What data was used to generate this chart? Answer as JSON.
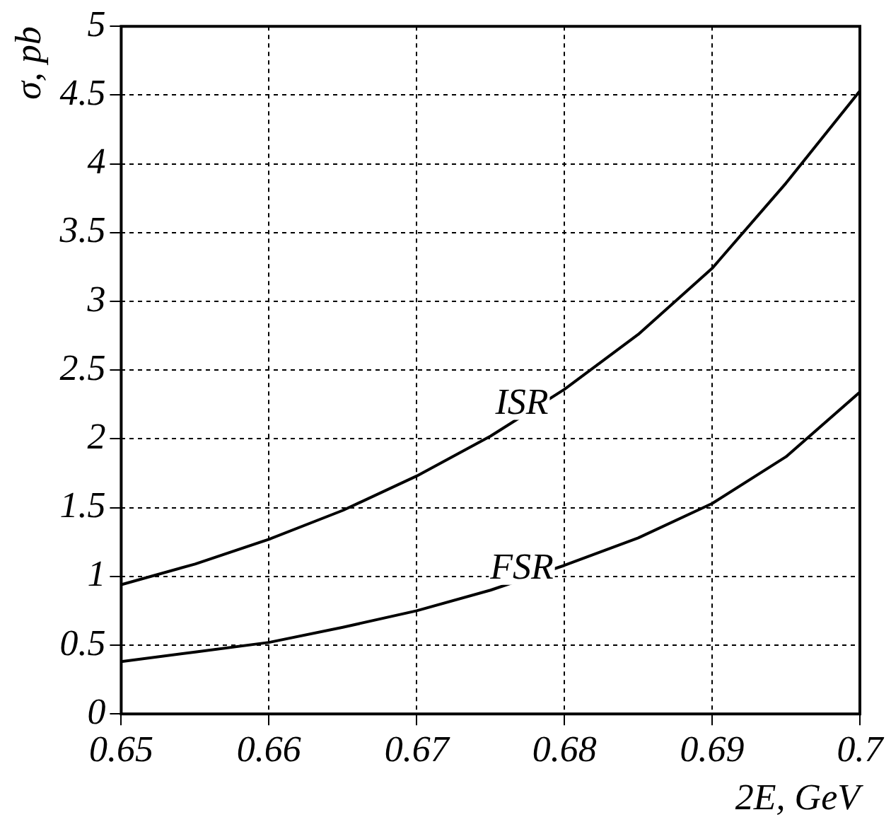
{
  "chart_data": {
    "type": "line",
    "xlabel": "2E, GeV",
    "ylabel": "σ, pb",
    "xlim": [
      0.65,
      0.7
    ],
    "xticks": [
      0.65,
      0.66,
      0.67,
      0.68,
      0.69,
      0.7
    ],
    "ylim": [
      0,
      5
    ],
    "yticks": [
      0,
      0.5,
      1,
      1.5,
      2,
      2.5,
      3,
      3.5,
      4,
      4.5,
      5
    ],
    "grid": true,
    "line_style": "solid",
    "marker": "none",
    "series": [
      {
        "name": "ISR",
        "color": "#000000",
        "x": [
          0.65,
          0.655,
          0.66,
          0.665,
          0.67,
          0.675,
          0.68,
          0.685,
          0.69,
          0.695,
          0.7
        ],
        "values": [
          0.94,
          1.09,
          1.27,
          1.48,
          1.73,
          2.02,
          2.36,
          2.76,
          3.24,
          3.86,
          4.53
        ]
      },
      {
        "name": "FSR",
        "color": "#000000",
        "x": [
          0.65,
          0.655,
          0.66,
          0.665,
          0.67,
          0.675,
          0.68,
          0.685,
          0.69,
          0.695,
          0.7
        ],
        "values": [
          0.38,
          0.45,
          0.52,
          0.63,
          0.75,
          0.9,
          1.08,
          1.28,
          1.53,
          1.87,
          2.34
        ]
      }
    ]
  }
}
